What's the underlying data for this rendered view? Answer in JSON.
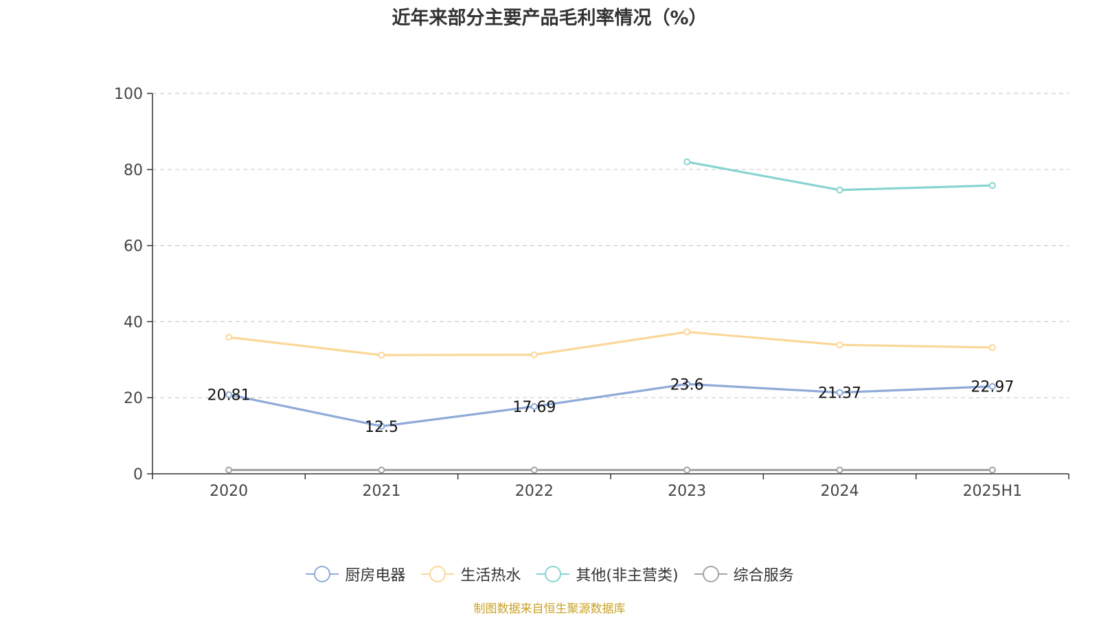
{
  "chart_data": {
    "type": "line",
    "title": "近年来部分主要产品毛利率情况（%）",
    "categories": [
      "2020",
      "2021",
      "2022",
      "2023",
      "2024",
      "2025H1"
    ],
    "ylim": [
      0,
      100
    ],
    "yticks": [
      0,
      20,
      40,
      60,
      80,
      100
    ],
    "grid": true,
    "legend_position": "bottom",
    "series": [
      {
        "name": "厨房电器",
        "color": "#8eaad8",
        "values": [
          20.81,
          12.5,
          17.69,
          23.6,
          21.37,
          22.97
        ],
        "labels": [
          "20.81",
          "12.5",
          "17.69",
          "23.6",
          "21.37",
          "22.97"
        ]
      },
      {
        "name": "生活热水",
        "color": "#fbd797",
        "values": [
          35.9,
          31.2,
          31.3,
          37.3,
          33.9,
          33.2
        ]
      },
      {
        "name": "其他(非主营类)",
        "color": "#86d4d0",
        "values": [
          null,
          null,
          null,
          82.0,
          74.6,
          75.8
        ]
      },
      {
        "name": "综合服务",
        "color": "#a3a3a3",
        "values": [
          1.0,
          1.0,
          1.0,
          1.0,
          1.0,
          1.0
        ]
      }
    ]
  },
  "source_note": "制图数据来自恒生聚源数据库"
}
